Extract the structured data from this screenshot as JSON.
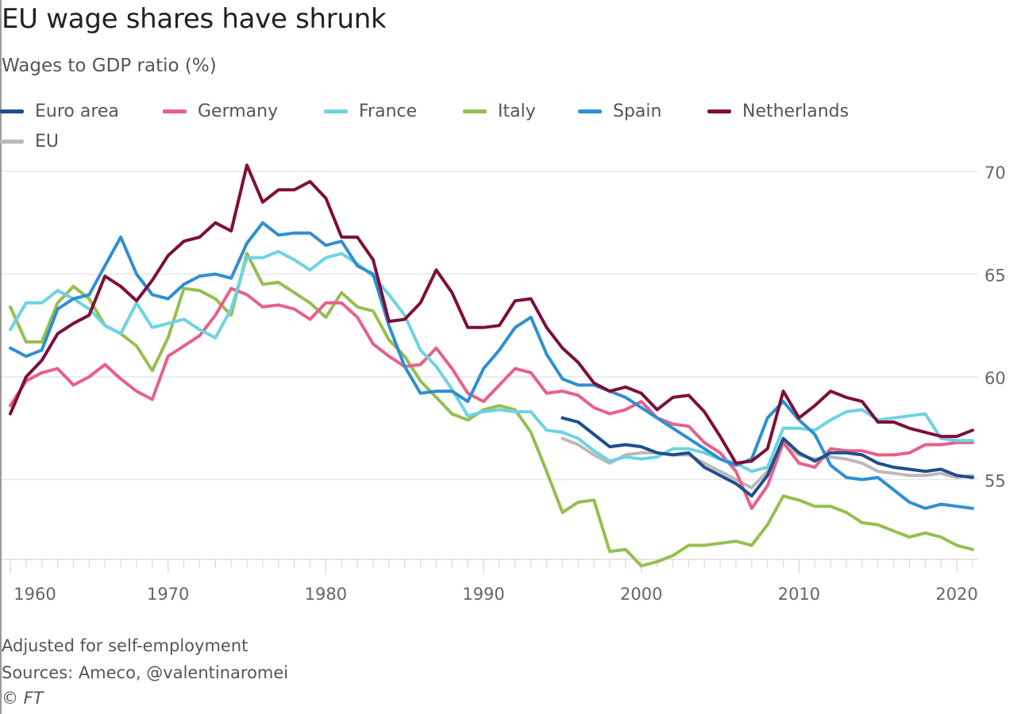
{
  "header": {
    "title": "EU wage shares have shrunk",
    "subtitle": "Wages to GDP ratio (%)"
  },
  "footer": {
    "note": "Adjusted for self-employment",
    "sources": "Sources: Ameco, @valentinaromei",
    "copyright": "© FT"
  },
  "chart_data": {
    "type": "line",
    "title": "EU wage shares have shrunk",
    "subtitle": "Wages to GDP ratio (%)",
    "xlabel": "",
    "ylabel": "Wages to GDP ratio (%)",
    "xlim": [
      1960,
      2021
    ],
    "ylim": [
      51,
      70.5
    ],
    "x_ticks": [
      "1960",
      "1970",
      "1980",
      "1990",
      "2000",
      "2010",
      "2020"
    ],
    "y_ticks": [
      "70",
      "65",
      "60",
      "55"
    ],
    "y_axis_side": "right",
    "grid": true,
    "legend_position": "top",
    "series": [
      {
        "name": "Euro area",
        "color": "#1f4e8c",
        "start_year": 1995,
        "values": [
          58.0,
          57.8,
          57.2,
          56.6,
          56.7,
          56.6,
          56.3,
          56.2,
          56.3,
          55.6,
          55.2,
          54.8,
          54.2,
          55.2,
          57.0,
          56.3,
          55.9,
          56.3,
          56.3,
          56.2,
          55.8,
          55.6,
          55.5,
          55.4,
          55.5,
          55.2,
          55.1
        ]
      },
      {
        "name": "Germany",
        "color": "#e8608a",
        "start_year": 1960,
        "values": [
          58.6,
          59.8,
          60.2,
          60.4,
          59.6,
          60.0,
          60.6,
          59.9,
          59.3,
          58.9,
          61.0,
          61.5,
          62.0,
          63.0,
          64.3,
          64.0,
          63.4,
          63.5,
          63.3,
          62.8,
          63.6,
          63.6,
          62.9,
          61.6,
          61.0,
          60.5,
          60.6,
          61.4,
          60.4,
          59.2,
          58.8,
          59.6,
          60.4,
          60.2,
          59.2,
          59.3,
          59.1,
          58.5,
          58.2,
          58.4,
          58.8,
          58.0,
          57.7,
          57.6,
          56.8,
          56.3,
          55.4,
          53.6,
          54.7,
          56.8,
          55.8,
          55.6,
          56.5,
          56.4,
          56.4,
          56.2,
          56.2,
          56.3,
          56.7,
          56.7,
          56.8,
          56.8
        ]
      },
      {
        "name": "France",
        "color": "#6dd3e3",
        "start_year": 1960,
        "values": [
          62.3,
          63.6,
          63.6,
          64.2,
          63.8,
          63.3,
          62.5,
          62.1,
          63.6,
          62.4,
          62.6,
          62.8,
          62.3,
          61.9,
          63.3,
          65.8,
          65.8,
          66.1,
          65.7,
          65.2,
          65.8,
          66.0,
          65.5,
          64.9,
          64.0,
          63.0,
          61.3,
          60.5,
          59.4,
          58.1,
          58.3,
          58.4,
          58.3,
          58.3,
          57.4,
          57.3,
          57.0,
          56.4,
          55.9,
          56.1,
          56.0,
          56.1,
          56.5,
          56.5,
          56.3,
          56.0,
          55.8,
          55.4,
          55.6,
          57.5,
          57.5,
          57.4,
          57.9,
          58.3,
          58.4,
          57.9,
          58.0,
          58.1,
          58.2,
          57.0,
          56.9,
          56.9
        ]
      },
      {
        "name": "Italy",
        "color": "#96bf4f",
        "start_year": 1960,
        "values": [
          63.4,
          61.7,
          61.7,
          63.6,
          64.4,
          63.8,
          62.5,
          62.1,
          61.5,
          60.3,
          61.9,
          64.3,
          64.2,
          63.8,
          63.0,
          66.0,
          64.5,
          64.6,
          64.1,
          63.6,
          62.9,
          64.1,
          63.4,
          63.2,
          61.8,
          61.0,
          59.8,
          59.0,
          58.2,
          57.9,
          58.4,
          58.6,
          58.4,
          57.3,
          55.4,
          53.4,
          53.9,
          54.0,
          51.5,
          51.6,
          50.8,
          51.0,
          51.3,
          51.8,
          51.8,
          51.9,
          52.0,
          51.8,
          52.8,
          54.2,
          54.0,
          53.7,
          53.7,
          53.4,
          52.9,
          52.8,
          52.5,
          52.2,
          52.4,
          52.2,
          51.8,
          51.6
        ]
      },
      {
        "name": "Spain",
        "color": "#2f8fd1",
        "start_year": 1960,
        "values": [
          61.4,
          61.0,
          61.3,
          63.3,
          63.8,
          64.0,
          65.4,
          66.8,
          65.0,
          64.0,
          63.8,
          64.5,
          64.9,
          65.0,
          64.8,
          66.5,
          67.5,
          66.9,
          67.0,
          67.0,
          66.4,
          66.6,
          65.4,
          65.0,
          62.5,
          60.5,
          59.2,
          59.3,
          59.3,
          58.8,
          60.4,
          61.3,
          62.4,
          62.9,
          61.1,
          59.9,
          59.6,
          59.6,
          59.3,
          59.0,
          58.5,
          58.0,
          57.5,
          57.0,
          56.5,
          56.0,
          55.7,
          56.0,
          58.0,
          58.8,
          57.9,
          57.2,
          55.7,
          55.1,
          55.0,
          55.1,
          54.5,
          53.9,
          53.6,
          53.8,
          53.7,
          53.6
        ]
      },
      {
        "name": "Netherlands",
        "color": "#7d0f3a",
        "start_year": 1960,
        "values": [
          58.2,
          60.0,
          60.8,
          62.1,
          62.6,
          63.0,
          64.9,
          64.4,
          63.7,
          64.7,
          65.9,
          66.6,
          66.8,
          67.5,
          67.1,
          70.3,
          68.5,
          69.1,
          69.1,
          69.5,
          68.7,
          66.8,
          66.8,
          65.7,
          62.7,
          62.8,
          63.6,
          65.2,
          64.1,
          62.4,
          62.4,
          62.5,
          63.7,
          63.8,
          62.4,
          61.4,
          60.7,
          59.7,
          59.3,
          59.5,
          59.2,
          58.4,
          59.0,
          59.1,
          58.3,
          57.1,
          55.8,
          55.9,
          56.5,
          59.3,
          58.0,
          58.6,
          59.3,
          59.0,
          58.8,
          57.8,
          57.8,
          57.5,
          57.3,
          57.1,
          57.1,
          57.4
        ]
      },
      {
        "name": "EU",
        "color": "#bdb8b8",
        "start_year": 1995,
        "values": [
          57.0,
          56.7,
          56.2,
          55.8,
          56.2,
          56.3,
          56.3,
          56.2,
          56.2,
          55.8,
          55.4,
          55.0,
          54.6,
          55.4,
          56.8,
          56.2,
          56.0,
          56.1,
          56.0,
          55.8,
          55.4,
          55.3,
          55.2,
          55.2,
          55.3,
          55.1,
          55.2
        ]
      }
    ]
  }
}
